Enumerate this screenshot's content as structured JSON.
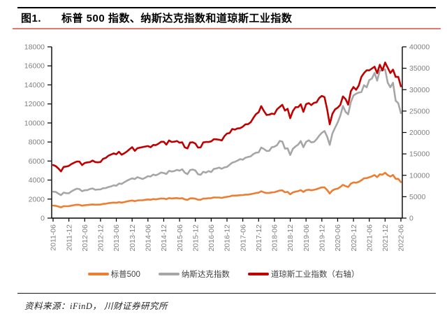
{
  "header": {
    "figure_label": "图1.",
    "title": "标普 500 指数、纳斯达克指数和道琼斯工业指数"
  },
  "footer": {
    "source_text": "资料来源：iFinD， 川财证券研究所"
  },
  "colors": {
    "sp500": "#ED7D31",
    "nasdaq": "#A6A6A6",
    "dow": "#C00000",
    "title_underline": "#E4786E",
    "axis_text": "#808080",
    "axis_line": "#000000"
  },
  "chart_data": {
    "type": "line",
    "title": "标普 500 指数、纳斯达克指数和道琼斯工业指数",
    "legend_position": "bottom",
    "grid": false,
    "x_labels": [
      "2011-06",
      "2011-12",
      "2012-06",
      "2012-12",
      "2013-06",
      "2013-12",
      "2014-06",
      "2014-12",
      "2015-06",
      "2015-12",
      "2016-06",
      "2016-12",
      "2017-06",
      "2017-12",
      "2018-06",
      "2018-12",
      "2019-06",
      "2019-12",
      "2020-06",
      "2020-12",
      "2021-06",
      "2021-12",
      "2022-06"
    ],
    "x_months_per_label": 6,
    "left_axis": {
      "min": 0,
      "max": 18000,
      "step": 2000
    },
    "right_axis": {
      "min": 0,
      "max": 40000,
      "step": 5000
    },
    "series": [
      {
        "name": "标普500",
        "key": "sp500-line",
        "color": "#ED7D31",
        "axis": "left",
        "values": [
          1321,
          1292,
          1219,
          1131,
          1253,
          1247,
          1258,
          1312,
          1366,
          1408,
          1398,
          1310,
          1362,
          1379,
          1407,
          1441,
          1412,
          1416,
          1426,
          1498,
          1515,
          1569,
          1598,
          1631,
          1606,
          1686,
          1633,
          1682,
          1757,
          1806,
          1848,
          1783,
          1859,
          1872,
          1884,
          1924,
          1960,
          1931,
          2003,
          1972,
          2018,
          2068,
          2059,
          1995,
          2105,
          2068,
          2086,
          2107,
          2063,
          2104,
          1972,
          1920,
          2079,
          2080,
          2044,
          1940,
          1932,
          2060,
          2065,
          2097,
          2099,
          2174,
          2171,
          2168,
          2126,
          2199,
          2239,
          2279,
          2364,
          2363,
          2384,
          2412,
          2423,
          2470,
          2472,
          2519,
          2575,
          2648,
          2674,
          2824,
          2714,
          2641,
          2648,
          2705,
          2718,
          2816,
          2902,
          2914,
          2712,
          2760,
          2507,
          2704,
          2784,
          2834,
          2946,
          2752,
          2942,
          2980,
          2926,
          2977,
          3038,
          3141,
          3231,
          3226,
          2954,
          2585,
          2912,
          3044,
          3100,
          3271,
          3500,
          3363,
          3270,
          3622,
          3756,
          3714,
          3811,
          3973,
          4181,
          4204,
          4297,
          4395,
          4523,
          4308,
          4605,
          4567,
          4766,
          4516,
          4374,
          4530,
          4132,
          4132,
          3785
        ]
      },
      {
        "name": "纳斯达克指数",
        "key": "nasdaq-line",
        "color": "#A6A6A6",
        "axis": "left",
        "values": [
          2774,
          2756,
          2579,
          2415,
          2684,
          2620,
          2605,
          2814,
          2967,
          3092,
          3046,
          2827,
          2935,
          2940,
          3067,
          3116,
          2977,
          3010,
          3020,
          3142,
          3160,
          3268,
          3329,
          3456,
          3403,
          3626,
          3590,
          3771,
          3920,
          4060,
          4177,
          4104,
          4308,
          4199,
          4115,
          4243,
          4408,
          4370,
          4580,
          4493,
          4631,
          4792,
          4736,
          4635,
          4964,
          4901,
          4941,
          5070,
          4987,
          5128,
          4777,
          4620,
          5054,
          5109,
          5007,
          4614,
          4558,
          4870,
          4775,
          4948,
          4843,
          5162,
          5213,
          5312,
          5189,
          5324,
          5383,
          5615,
          5825,
          5912,
          6048,
          6199,
          6140,
          6348,
          6429,
          6496,
          6728,
          6874,
          6903,
          7411,
          7273,
          7063,
          7066,
          7442,
          7510,
          7672,
          8110,
          8046,
          7306,
          7331,
          6635,
          7282,
          7533,
          7729,
          8095,
          7453,
          8006,
          8175,
          7963,
          7999,
          8292,
          8665,
          8973,
          9151,
          8567,
          7700,
          8890,
          9490,
          10059,
          10745,
          11775,
          11168,
          10912,
          12199,
          12888,
          13071,
          13192,
          13247,
          13963,
          13749,
          14504,
          14673,
          15259,
          14449,
          15498,
          15538,
          15645,
          14240,
          13751,
          14221,
          12335,
          12081,
          11029
        ]
      },
      {
        "name": "道琼斯工业指数（右轴）",
        "key": "dow-line",
        "color": "#C00000",
        "axis": "right",
        "values": [
          12414,
          12143,
          11614,
          10913,
          11955,
          12046,
          12218,
          12633,
          12952,
          13212,
          13214,
          12393,
          12880,
          13009,
          13091,
          13437,
          13096,
          13026,
          13104,
          13861,
          14054,
          14579,
          14840,
          15116,
          14910,
          15500,
          14810,
          15130,
          15546,
          16086,
          16577,
          15699,
          16322,
          16458,
          16581,
          16717,
          16827,
          16563,
          17098,
          17043,
          17391,
          17828,
          17823,
          17165,
          18133,
          17776,
          17841,
          18011,
          17620,
          17690,
          16528,
          16285,
          17664,
          17720,
          17425,
          16466,
          16517,
          17685,
          17774,
          17787,
          17930,
          18432,
          18401,
          18308,
          18142,
          19124,
          19763,
          19864,
          20812,
          20663,
          20941,
          21009,
          21350,
          21891,
          21948,
          22405,
          23377,
          24272,
          24719,
          26149,
          25029,
          24103,
          24163,
          24416,
          24271,
          25415,
          25965,
          26458,
          25116,
          25538,
          23327,
          25000,
          25916,
          25929,
          26593,
          24815,
          26600,
          26864,
          26403,
          26917,
          27046,
          28051,
          28538,
          28256,
          25409,
          21917,
          24346,
          25383,
          25813,
          26428,
          28430,
          27782,
          26502,
          29639,
          30606,
          29983,
          30932,
          32982,
          33875,
          34529,
          34503,
          34935,
          35361,
          33844,
          35820,
          34484,
          36338,
          35132,
          33893,
          34678,
          32977,
          32990,
          30775
        ]
      }
    ]
  }
}
